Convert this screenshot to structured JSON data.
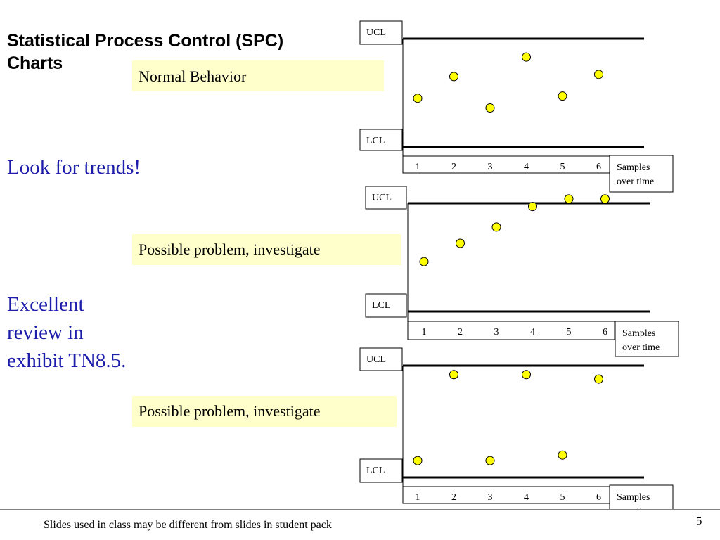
{
  "title": "Statistical Process Control (SPC) Charts",
  "notes": {
    "trends": "Look for trends!",
    "review": "Excellent review in exhibit TN8.5."
  },
  "footer": "Slides used in class may be different from slides in student pack",
  "page_number": "5",
  "colors": {
    "point_fill": "#ffff00",
    "tag_fill": "#ffffcc",
    "note_text": "#1d1dab"
  },
  "chart_data": [
    {
      "type": "scatter",
      "label": "Normal Behavior",
      "ucl_label": "UCL",
      "lcl_label": "LCL",
      "xlabel": "Samples over time",
      "x": [
        1,
        2,
        3,
        4,
        5,
        6
      ],
      "y": [
        0.45,
        0.65,
        0.36,
        0.83,
        0.47,
        0.67
      ]
    },
    {
      "type": "scatter",
      "label": "Possible problem, investigate",
      "ucl_label": "UCL",
      "lcl_label": "LCL",
      "xlabel": "Samples over time",
      "x": [
        1,
        2,
        3,
        4,
        5,
        6
      ],
      "y": [
        0.46,
        0.63,
        0.78,
        0.97,
        1.04,
        1.04
      ]
    },
    {
      "type": "scatter",
      "label": "Possible problem, investigate",
      "ucl_label": "UCL",
      "lcl_label": "LCL",
      "xlabel": "Samples over time",
      "x": [
        2,
        4,
        6,
        1,
        3,
        5
      ],
      "y": [
        0.92,
        0.92,
        0.88,
        0.15,
        0.15,
        0.2
      ]
    }
  ]
}
